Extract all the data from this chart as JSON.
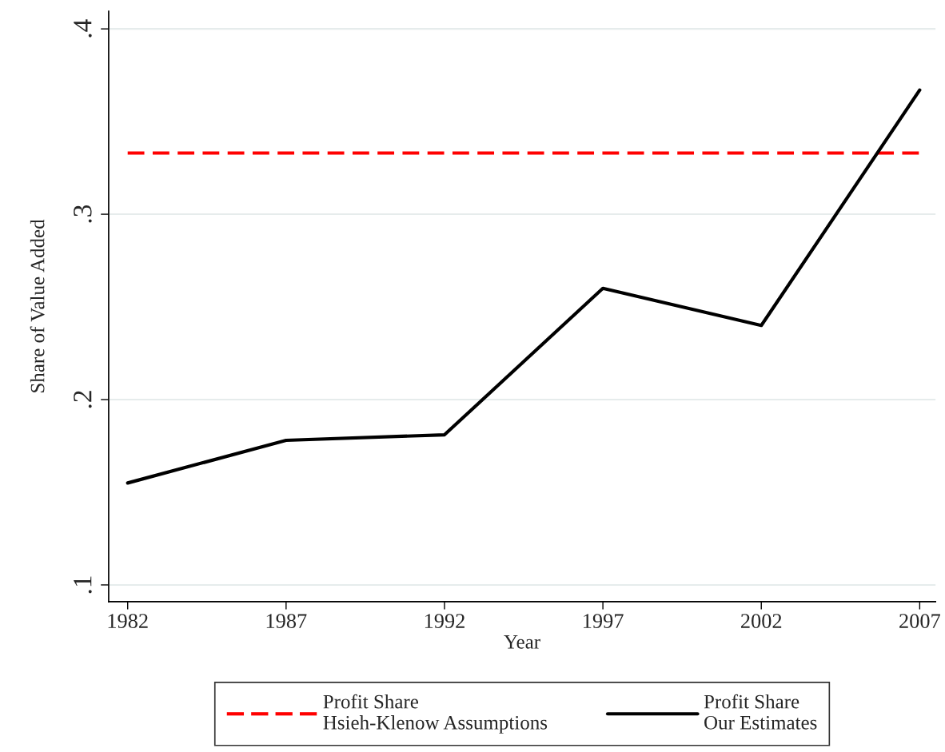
{
  "chart_data": {
    "type": "line",
    "xlabel": "Year",
    "ylabel": "Share of Value Added",
    "x": [
      1982,
      1987,
      1992,
      1997,
      2002,
      2007
    ],
    "series": [
      {
        "name": "Profit Share\nHsieh-Klenow Assumptions",
        "color": "#ff0000",
        "line_style": "dashed",
        "values": [
          0.333,
          0.333,
          0.333,
          0.333,
          0.333,
          0.333
        ]
      },
      {
        "name": "Profit Share\nOur Estimates",
        "color": "#000000",
        "line_style": "solid",
        "values": [
          0.155,
          0.178,
          0.181,
          0.26,
          0.24,
          0.367
        ]
      }
    ],
    "xlim": [
      1981.4,
      2007.5
    ],
    "xticks": [
      1982,
      1987,
      1992,
      1997,
      2002,
      2007
    ],
    "ylim": [
      0.091,
      0.4095
    ],
    "yticks": [
      {
        "value": 0.1,
        "label": ".1"
      },
      {
        "value": 0.2,
        "label": ".2"
      },
      {
        "value": 0.3,
        "label": ".3"
      },
      {
        "value": 0.4,
        "label": ".4"
      }
    ],
    "grid": "y",
    "legend": "bottom",
    "marker": "none"
  }
}
